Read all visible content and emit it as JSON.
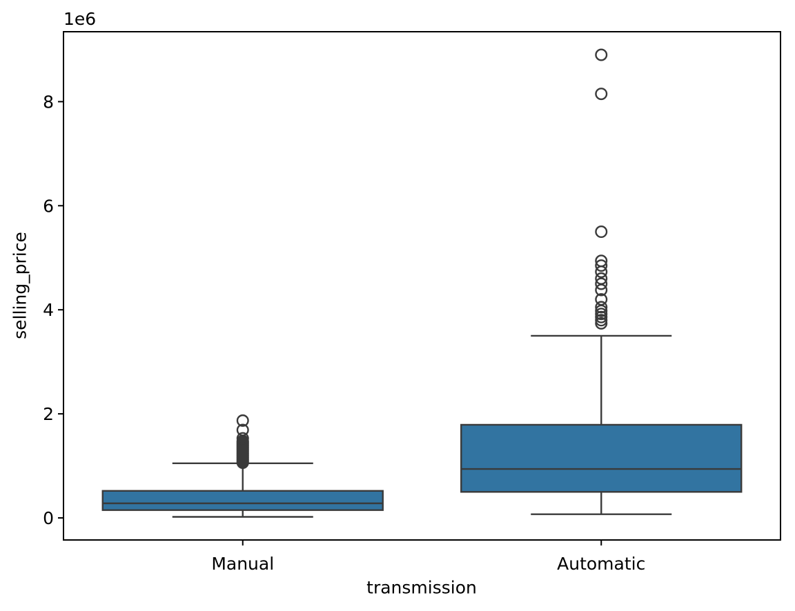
{
  "figure": {
    "background": "#ffffff",
    "styles": {
      "box_fill": "#3274a1",
      "line_color": "#3a3a3a",
      "axis_color": "#000000",
      "text_color": "#000000"
    }
  },
  "labels": {
    "xlabel": "transmission",
    "ylabel": "selling_price",
    "offset_text": "1e6"
  },
  "chart_data": {
    "type": "boxplot",
    "title": "",
    "xlabel": "transmission",
    "ylabel": "selling_price",
    "y_offset_text": "1e6",
    "grid": false,
    "legend": false,
    "categories": [
      "Manual",
      "Automatic"
    ],
    "ylim": [
      -424000,
      9344000
    ],
    "yticks": [
      0,
      2000000,
      4000000,
      6000000,
      8000000
    ],
    "ytick_labels": [
      "0",
      "2",
      "4",
      "6",
      "8"
    ],
    "series": [
      {
        "category": "Manual",
        "whisker_low": 20000,
        "q1": 150000,
        "median": 280000,
        "q3": 520000,
        "whisker_high": 1050000,
        "outliers": [
          1060000,
          1080000,
          1100000,
          1120000,
          1140000,
          1160000,
          1180000,
          1200000,
          1220000,
          1240000,
          1260000,
          1280000,
          1300000,
          1320000,
          1340000,
          1360000,
          1380000,
          1400000,
          1420000,
          1440000,
          1460000,
          1480000,
          1530000,
          1690000,
          1870000
        ]
      },
      {
        "category": "Automatic",
        "whisker_low": 70000,
        "q1": 500000,
        "median": 940000,
        "q3": 1790000,
        "whisker_high": 3500000,
        "outliers": [
          3740000,
          3800000,
          3860000,
          3920000,
          3980000,
          4050000,
          4200000,
          4380000,
          4500000,
          4600000,
          4730000,
          4850000,
          4940000,
          5500000,
          8150000,
          8900000
        ]
      }
    ]
  }
}
